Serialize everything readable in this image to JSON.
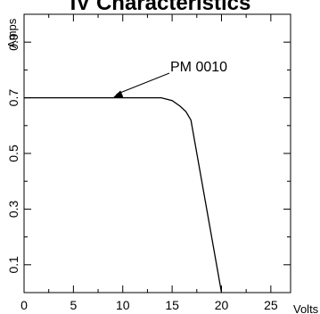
{
  "chart_data": {
    "type": "line",
    "title": "IV Characteristics",
    "xlabel": "Volts",
    "ylabel": "Amps",
    "xlim": [
      0,
      27
    ],
    "ylim": [
      0,
      1.0
    ],
    "xticks": [
      0,
      5,
      10,
      15,
      20,
      25
    ],
    "xtick_labels": [
      "0",
      "5",
      "10",
      "15",
      "20",
      "25"
    ],
    "yticks": [
      0.1,
      0.3,
      0.5,
      0.7,
      0.9
    ],
    "ytick_labels": [
      "0.1",
      "0.3",
      "0.5",
      "0.7",
      "0.9"
    ],
    "grid": false,
    "series": [
      {
        "name": "PM 0010",
        "x": [
          0,
          13.9,
          15.0,
          15.8,
          16.4,
          16.9,
          20.0
        ],
        "y": [
          0.7,
          0.7,
          0.69,
          0.67,
          0.65,
          0.62,
          0.0
        ]
      }
    ],
    "annotation": {
      "text": "PM 0010",
      "target_x": 9.0,
      "target_y": 0.7
    }
  }
}
